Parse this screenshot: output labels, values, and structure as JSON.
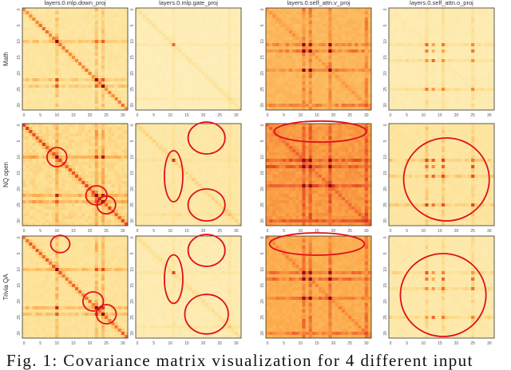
{
  "chart_data": {
    "type": "heatmap",
    "columns": [
      "layers.0.mlp.down_proj",
      "layers.0.mlp.gate_proj",
      "layers.0.self_attn.v_proj",
      "layers.0.self_attn.o_proj"
    ],
    "rows": [
      "Math",
      "NQ open",
      "Trivia QA"
    ],
    "x_ticks": [
      "0",
      "5",
      "10",
      "15",
      "20",
      "25",
      "30"
    ],
    "y_ticks": [
      "0",
      "5",
      "10",
      "15",
      "20",
      "25",
      "30"
    ],
    "matrix_size": 32,
    "colors": {
      "low": "#fdf4cc",
      "high": "#8b0a1e",
      "highlight_circle": "#e0101a"
    }
  },
  "caption": "Fig. 1: Covariance matrix visualization for 4 different input"
}
